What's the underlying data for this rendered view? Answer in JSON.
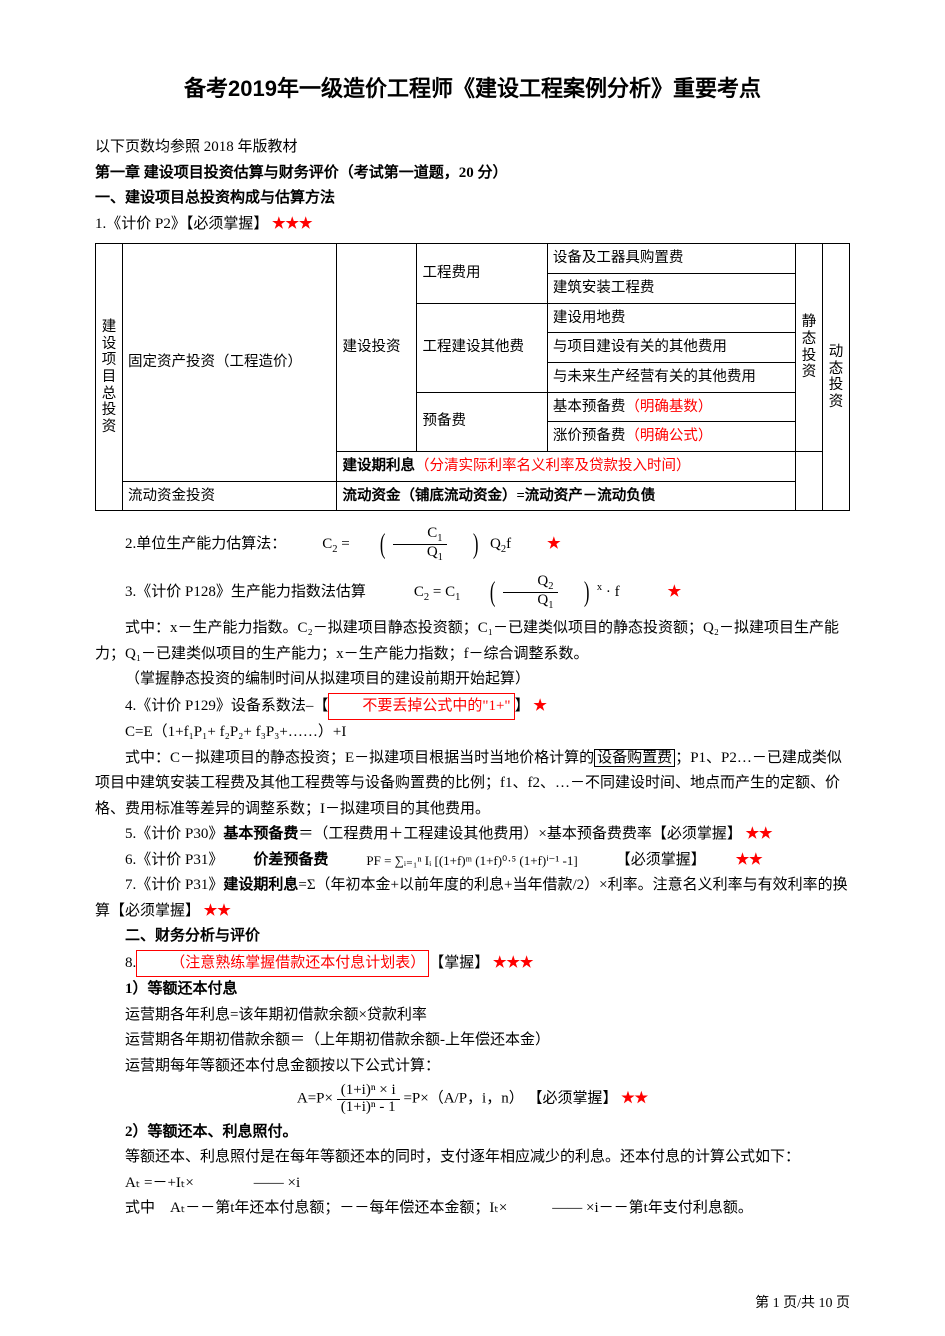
{
  "title": "备考2019年一级造价工程师《建设工程案例分析》重要考点",
  "p1": "以下页数均参照 2018 年版教材",
  "p2": "第一章 建设项目投资估算与财务评价（考试第一道题，20 分）",
  "p3": "一、建设项目总投资构成与估算方法",
  "p4_a": "1.《计价 P2》【必须掌握】",
  "stars3": "★★★",
  "stars2": "★★",
  "star1": "★",
  "table": {
    "c1": "建设项目总投资",
    "c2a": "固定资产投资（工程造价）",
    "c2b": "流动资金投资",
    "c3a": "建设投资",
    "c3b": "建设期利息",
    "c3b_note": "（分清实际利率名义利率及贷款投入时间）",
    "c3c": "流动资金（铺底流动资金）=流动资产－流动负债",
    "c4a": "工程费用",
    "c4b": "工程建设其他费",
    "c4c": "预备费",
    "c5_1": "设备及工器具购置费",
    "c5_2": "建筑安装工程费",
    "c5_3": "建设用地费",
    "c5_4": "与项目建设有关的其他费用",
    "c5_5": "与未来生产经营有关的其他费用",
    "c5_6a": "基本预备费",
    "c5_6b": "（明确基数）",
    "c5_7a": "涨价预备费",
    "c5_7b": "（明确公式）",
    "c6a": "静态投资",
    "c6b": "动态投资"
  },
  "p5": "2.单位生产能力估算法：",
  "f5": {
    "lhs": "C",
    "lhs_s": "2",
    "eq": "=",
    "q2f": "Q₂f",
    "c1": "C",
    "c1_s": "1",
    "q1": "Q",
    "q1_s": "1"
  },
  "p6": "3.《计价 P128》生产能力指数法估算",
  "f6": {
    "lhs": "C₂ = C₁",
    "q2": "Q₂",
    "q1": "Q₁",
    "exp": "x",
    "tail": "· f"
  },
  "p7": "式中：x－生产能力指数。C₂－拟建项目静态投资额；C₁－已建类似项目的静态投资额；Q₂－拟建项目生产能力；Q₁－已建类似项目的生产能力；x－生产能力指数；f－综合调整系数。",
  "p8": "（掌握静态投资的编制时间从拟建项目的建设前期开始起算）",
  "p9a": "4.《计价 P129》设备系数法–【",
  "p9b": "不要丢掉公式中的\"1+\"",
  "p9c": "】",
  "p10": "C=E（1+f₁P₁+ f₂P₂+ f₃P₃+……）+I",
  "p11": "式中：C－拟建项目的静态投资；E－拟建项目根据当时当地价格计算的",
  "p11b": "设备购置费",
  "p11c": "；P1、P2…－已建成类似项目中建筑安装工程费及其他工程费等与设备购置费的比例；f1、f2、…－不同建设时间、地点而产生的定额、价格、费用标准等差异的调整系数；I－拟建项目的其他费用。",
  "p12": "5.《计价 P30》",
  "p12b": "基本预备费",
  "p12c": "＝（工程费用＋工程建设其他费用）×基本预备费费率【必须掌握】",
  "p13": "6.《计价 P31》",
  "p13b": "价差预备费",
  "f13": "PF = ∑ᵢ₌₁ⁿ Iᵢ [(1+f)ᵐ (1+f)⁰·⁵ (1+f)ⁱ⁻¹ -1]",
  "p13c": "【必须掌握】",
  "p14": "7.《计价 P31》",
  "p14b": "建设期利息",
  "p14c": "=Σ（年初本金+以前年度的利息+当年借款/2）×利率。注意名义利率与有效利率的换算【必须掌握】",
  "h2": "二、财务分析与评价",
  "p15a": "8.",
  "p15b": "（注意熟练掌握借款还本付息计划表）",
  "p15c": "【掌握】",
  "p16": "1）等额还本付息",
  "p17": "运营期各年利息=该年期初借款余额×贷款利率",
  "p18": "运营期各年期初借款余额＝（上年期初借款余额-上年偿还本金）",
  "p19": "运营期每年等额还本付息金额按以下公式计算：",
  "f19a": "A=P×",
  "f19_num": "(1+i)ⁿ × i",
  "f19_den": "(1+i)ⁿ - 1",
  "f19b": "=P×（A/P，i，n） 【必须掌握】",
  "p20": "2）等额还本、利息照付。",
  "p21": "等额还本、利息照付是在每年等额还本的同时，支付逐年相应减少的利息。还本付息的计算公式如下：",
  "p22": "Aₜ =－+Iₜ×　　　　—— ×i",
  "p23": "式中　Aₜ－－第t年还本付息额；－－每年偿还本金额；Iₜ×　　　—— ×i－－第t年支付利息额。",
  "footer": "第 1 页/共 10 页"
}
